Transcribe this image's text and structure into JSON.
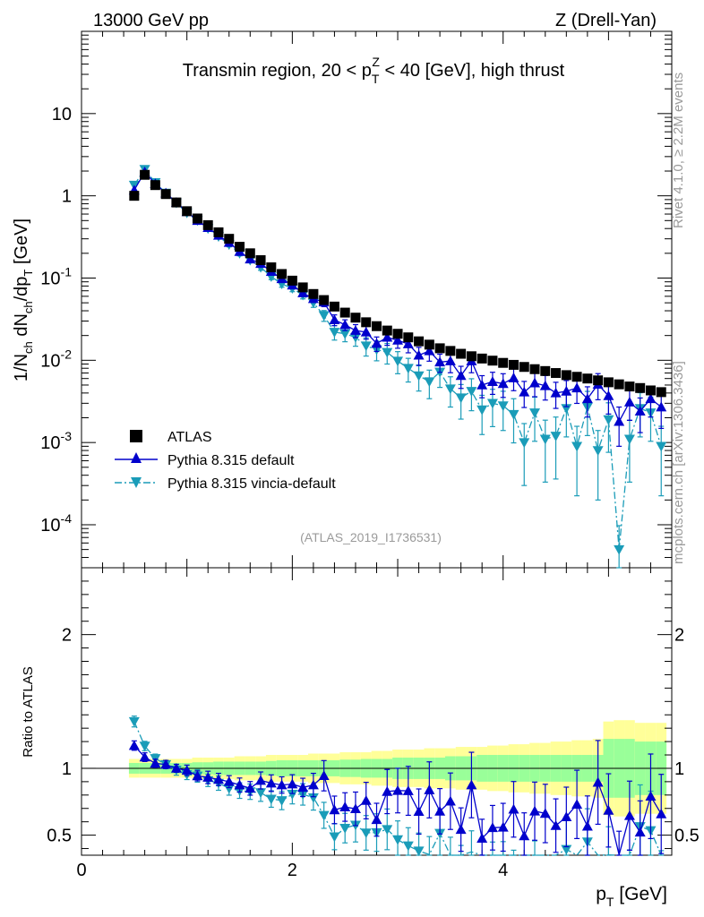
{
  "header": {
    "energy_label": "13000 GeV pp",
    "process_label": "Z (Drell-Yan)",
    "plot_title_prefix": "Transmin region, 20 < p",
    "plot_title_sub": "T",
    "plot_title_sup": "Z",
    "plot_title_suffix": " < 40 [GeV], high thrust",
    "analysis_id": "(ATLAS_2019_I1736531)",
    "side_rivet": "Rivet 4.1.0, ≥ 2.2M events",
    "side_mcplots": "mcplots.cern.ch [arXiv:1306.3436]"
  },
  "axes": {
    "y_main_label": "1/N_ch dN_ch/dp_T [GeV]",
    "y_ratio_label": "Ratio to ATLAS",
    "x_label": "p_T [GeV]",
    "x_ticks": [
      "0",
      "2",
      "4"
    ],
    "y_main_ticks": [
      "10",
      "1",
      "10^-1",
      "10^-2",
      "10^-3",
      "10^-4"
    ],
    "y_ratio_ticks": [
      "2",
      "1",
      "0.5"
    ]
  },
  "legend": {
    "atlas": "ATLAS",
    "pythia_default": "Pythia 8.315 default",
    "pythia_vincia": "Pythia 8.315 vincia-default"
  },
  "colors": {
    "atlas": "#000000",
    "pythia_default": "#0000cc",
    "pythia_vincia": "#1a9cb8",
    "band_outer": "#ffff99",
    "band_inner": "#99ff99"
  },
  "chart_data": {
    "type": "scatter",
    "x": [
      0.5,
      0.6,
      0.7,
      0.8,
      0.9,
      1.0,
      1.1,
      1.2,
      1.3,
      1.4,
      1.5,
      1.6,
      1.7,
      1.8,
      1.9,
      2.0,
      2.1,
      2.2,
      2.3,
      2.4,
      2.5,
      2.6,
      2.7,
      2.8,
      2.9,
      3.0,
      3.1,
      3.2,
      3.3,
      3.4,
      3.5,
      3.6,
      3.7,
      3.8,
      3.9,
      4.0,
      4.1,
      4.2,
      4.3,
      4.4,
      4.5,
      4.6,
      4.7,
      4.8,
      4.9,
      5.0,
      5.1,
      5.2,
      5.3,
      5.4,
      5.5
    ],
    "xlim": [
      0,
      5.6
    ],
    "ylim_main": [
      3e-05,
      100
    ],
    "ylim_ratio": [
      0.35,
      2.5
    ],
    "series": [
      {
        "name": "ATLAS",
        "values": [
          1.0,
          1.8,
          1.35,
          1.05,
          0.83,
          0.65,
          0.53,
          0.44,
          0.36,
          0.3,
          0.24,
          0.2,
          0.165,
          0.135,
          0.112,
          0.093,
          0.077,
          0.064,
          0.054,
          0.045,
          0.038,
          0.033,
          0.029,
          0.026,
          0.023,
          0.021,
          0.019,
          0.017,
          0.0155,
          0.014,
          0.013,
          0.012,
          0.0112,
          0.0105,
          0.0099,
          0.0093,
          0.0088,
          0.0083,
          0.0078,
          0.0074,
          0.007,
          0.0066,
          0.0063,
          0.006,
          0.0057,
          0.0054,
          0.0051,
          0.0048,
          0.0046,
          0.0043,
          0.0041
        ]
      },
      {
        "name": "Pythia 8.315 default",
        "values": [
          1.17,
          1.95,
          1.4,
          1.08,
          0.83,
          0.64,
          0.5,
          0.41,
          0.33,
          0.27,
          0.21,
          0.17,
          0.15,
          0.12,
          0.098,
          0.082,
          0.066,
          0.056,
          0.051,
          0.031,
          0.027,
          0.023,
          0.022,
          0.016,
          0.019,
          0.0175,
          0.0158,
          0.0115,
          0.013,
          0.0095,
          0.0098,
          0.0065,
          0.0098,
          0.005,
          0.0055,
          0.0052,
          0.0061,
          0.0041,
          0.0053,
          0.0049,
          0.004,
          0.0042,
          0.0046,
          0.0034,
          0.0051,
          0.0037,
          0.0018,
          0.0031,
          0.0024,
          0.0034,
          0.0027
        ]
      },
      {
        "name": "Pythia 8.315 vincia-default",
        "values": [
          1.35,
          2.1,
          1.45,
          1.08,
          0.82,
          0.62,
          0.5,
          0.4,
          0.32,
          0.255,
          0.2,
          0.165,
          0.135,
          0.104,
          0.085,
          0.075,
          0.062,
          0.05,
          0.035,
          0.022,
          0.021,
          0.019,
          0.015,
          0.0135,
          0.0125,
          0.0098,
          0.008,
          0.0065,
          0.0055,
          0.0072,
          0.0045,
          0.0035,
          0.0042,
          0.0025,
          0.003,
          0.0028,
          0.0022,
          0.001,
          0.0023,
          0.0011,
          0.0012,
          0.0026,
          0.0009,
          0.0027,
          0.0008,
          0.0019,
          5e-05,
          0.0011,
          0.0026,
          0.0023,
          0.0009
        ]
      }
    ],
    "band_inner_halfwidth": [
      0.04,
      0.04,
      0.04,
      0.04,
      0.04,
      0.04,
      0.045,
      0.045,
      0.05,
      0.05,
      0.05,
      0.05,
      0.05,
      0.055,
      0.06,
      0.06,
      0.06,
      0.06,
      0.06,
      0.06,
      0.065,
      0.065,
      0.07,
      0.07,
      0.07,
      0.08,
      0.08,
      0.08,
      0.08,
      0.08,
      0.09,
      0.09,
      0.09,
      0.1,
      0.1,
      0.1,
      0.1,
      0.1,
      0.1,
      0.1,
      0.1,
      0.1,
      0.1,
      0.1,
      0.1,
      0.22,
      0.22,
      0.22,
      0.2,
      0.2,
      0.2
    ],
    "band_outer_halfwidth": [
      0.07,
      0.07,
      0.07,
      0.07,
      0.07,
      0.07,
      0.08,
      0.08,
      0.08,
      0.08,
      0.09,
      0.09,
      0.09,
      0.1,
      0.1,
      0.1,
      0.1,
      0.11,
      0.11,
      0.11,
      0.12,
      0.12,
      0.12,
      0.13,
      0.13,
      0.14,
      0.14,
      0.14,
      0.15,
      0.15,
      0.15,
      0.16,
      0.16,
      0.16,
      0.17,
      0.17,
      0.18,
      0.18,
      0.19,
      0.19,
      0.2,
      0.2,
      0.21,
      0.21,
      0.22,
      0.35,
      0.36,
      0.36,
      0.34,
      0.34,
      0.34
    ],
    "main_rel_err_default": [
      0.03,
      0.03,
      0.03,
      0.03,
      0.03,
      0.04,
      0.04,
      0.05,
      0.05,
      0.05,
      0.06,
      0.06,
      0.07,
      0.07,
      0.07,
      0.08,
      0.08,
      0.1,
      0.12,
      0.15,
      0.15,
      0.18,
      0.18,
      0.2,
      0.2,
      0.2,
      0.22,
      0.25,
      0.25,
      0.25,
      0.28,
      0.3,
      0.28,
      0.3,
      0.3,
      0.32,
      0.3,
      0.35,
      0.32,
      0.33,
      0.35,
      0.35,
      0.35,
      0.4,
      0.35,
      0.4,
      0.5,
      0.4,
      0.45,
      0.4,
      0.45
    ],
    "main_rel_err_vincia": [
      0.03,
      0.03,
      0.03,
      0.03,
      0.04,
      0.04,
      0.05,
      0.05,
      0.06,
      0.06,
      0.07,
      0.07,
      0.08,
      0.08,
      0.09,
      0.09,
      0.1,
      0.12,
      0.15,
      0.2,
      0.2,
      0.22,
      0.25,
      0.27,
      0.28,
      0.3,
      0.32,
      0.35,
      0.38,
      0.35,
      0.4,
      0.45,
      0.42,
      0.5,
      0.48,
      0.5,
      0.55,
      0.7,
      0.55,
      0.7,
      0.7,
      0.55,
      0.75,
      0.55,
      0.75,
      0.6,
      0.95,
      0.7,
      0.55,
      0.55,
      0.75
    ]
  }
}
